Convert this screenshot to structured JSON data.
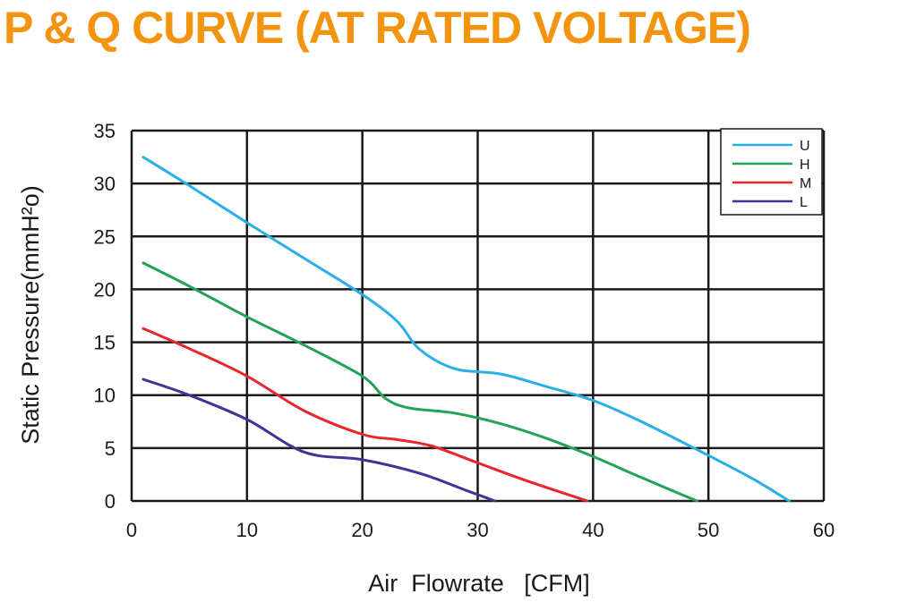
{
  "title": "P & Q CURVE (AT RATED VOLTAGE)",
  "colors": {
    "title": "#f39410",
    "U": "#29aee6",
    "H": "#23a356",
    "M": "#e8262b",
    "L": "#3a3596",
    "grid": "#1a1a1a"
  },
  "chart_data": {
    "type": "line",
    "title": "P & Q CURVE (AT RATED VOLTAGE)",
    "xlabel": "Air  Flowrate   [CFM]",
    "ylabel": "Static Pressure(mmH²o)",
    "xlim": [
      0,
      60
    ],
    "ylim": [
      0,
      35
    ],
    "xticks": [
      0,
      10,
      20,
      30,
      40,
      50,
      60
    ],
    "yticks": [
      0,
      5,
      10,
      15,
      20,
      25,
      30,
      35
    ],
    "grid": true,
    "legend_position": "top-right",
    "series": [
      {
        "name": "U",
        "color": "#29aee6",
        "x": [
          1,
          5,
          10,
          15,
          20,
          23,
          25,
          28,
          32,
          36,
          40,
          44,
          50,
          54,
          57
        ],
        "y": [
          32.5,
          29.8,
          26.3,
          22.9,
          19.5,
          17.0,
          14.3,
          12.5,
          12.0,
          10.8,
          9.5,
          7.6,
          4.3,
          2.0,
          0
        ]
      },
      {
        "name": "H",
        "color": "#23a356",
        "x": [
          1,
          5,
          10,
          15,
          20,
          22,
          24,
          28,
          32,
          36,
          40,
          44,
          49
        ],
        "y": [
          22.5,
          20.3,
          17.4,
          14.7,
          11.8,
          9.7,
          8.8,
          8.3,
          7.3,
          5.9,
          4.2,
          2.3,
          0
        ]
      },
      {
        "name": "M",
        "color": "#e8262b",
        "x": [
          1,
          5,
          10,
          15,
          20,
          23,
          26,
          30,
          34,
          39.5
        ],
        "y": [
          16.3,
          14.4,
          11.8,
          8.5,
          6.3,
          5.8,
          5.2,
          3.6,
          2.0,
          0
        ]
      },
      {
        "name": "L",
        "color": "#3a3596",
        "x": [
          1,
          5,
          10,
          15,
          20,
          25,
          29,
          31.5
        ],
        "y": [
          11.5,
          10.0,
          7.7,
          4.6,
          3.9,
          2.6,
          1.0,
          0
        ]
      }
    ]
  }
}
